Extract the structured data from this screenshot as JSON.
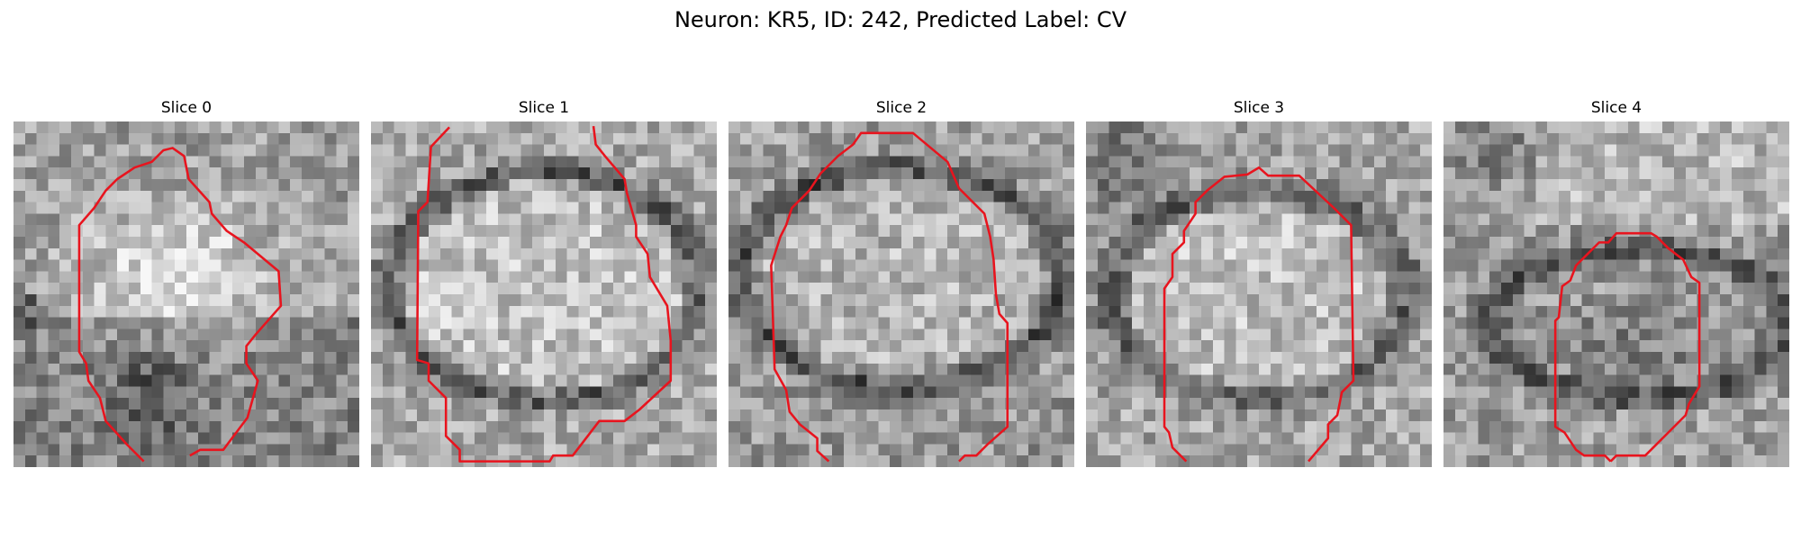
{
  "title": "Neuron: KR5, ID: 242, Predicted Label: CV",
  "panels": [
    {
      "title": "Slice 0"
    },
    {
      "title": "Slice 1"
    },
    {
      "title": "Slice 2"
    },
    {
      "title": "Slice 3"
    },
    {
      "title": "Slice 4"
    }
  ],
  "colors": {
    "contour": "#e8141e",
    "background": "#ffffff",
    "image_palette": "grayscale"
  }
}
